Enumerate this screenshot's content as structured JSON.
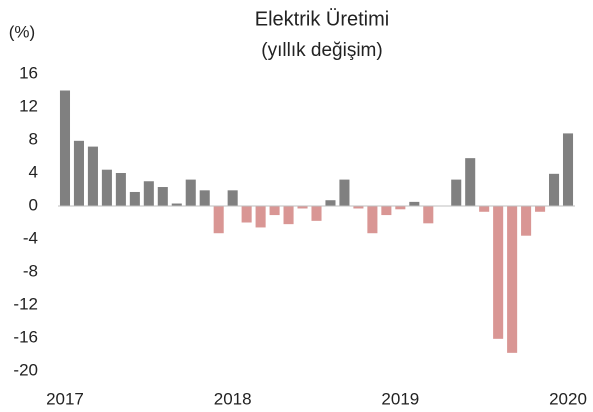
{
  "chart_data": {
    "type": "bar",
    "title": "Elektrik Üretimi",
    "subtitle": "(yıllık değişim)",
    "y_label": "(%)",
    "categories": [
      "2017",
      null,
      null,
      null,
      null,
      null,
      null,
      null,
      null,
      null,
      null,
      null,
      "2018",
      null,
      null,
      null,
      null,
      null,
      null,
      null,
      null,
      null,
      null,
      null,
      "2019",
      null,
      null,
      null,
      null,
      null,
      null,
      null,
      null,
      null,
      null,
      null,
      "2020"
    ],
    "values": [
      14.0,
      7.9,
      7.2,
      4.4,
      4.0,
      1.7,
      3.0,
      2.3,
      0.3,
      3.2,
      1.9,
      -3.3,
      1.9,
      -2.0,
      -2.6,
      -1.1,
      -2.2,
      -0.3,
      -1.8,
      0.7,
      3.2,
      -0.3,
      -3.3,
      -1.1,
      -0.4,
      0.5,
      -2.1,
      0,
      3.2,
      5.8,
      -0.7,
      -16.1,
      -17.8,
      -3.6,
      -0.7,
      3.9,
      8.8
    ],
    "positive_color": "#808080",
    "negative_color": "#d99694",
    "ylim": [
      -20,
      16
    ],
    "yticks": [
      16,
      12,
      8,
      4,
      0,
      -4,
      -8,
      -12,
      -16,
      -20
    ],
    "grid": false
  }
}
